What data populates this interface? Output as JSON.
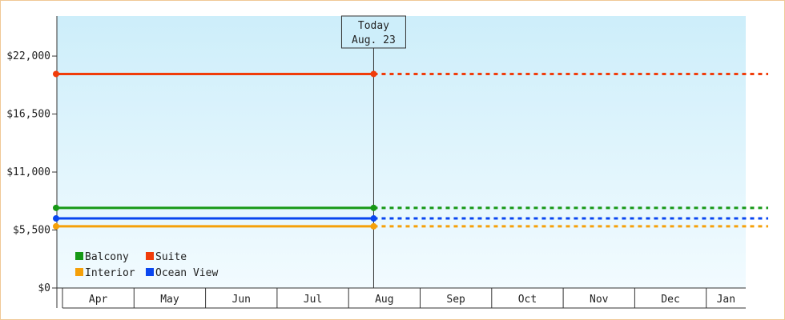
{
  "chart_data": {
    "type": "line",
    "categories": [
      "Apr",
      "May",
      "Jun",
      "Jul",
      "Aug",
      "Sep",
      "Oct",
      "Nov",
      "Dec",
      "Jan"
    ],
    "y_ticks": [
      "$0",
      "$5,500",
      "$11,000",
      "$16,500",
      "$22,000"
    ],
    "y_tick_values": [
      0,
      5500,
      11000,
      16500,
      22000
    ],
    "ylim": [
      0,
      25800
    ],
    "today": {
      "line1": "Today",
      "line2": "Aug. 23",
      "x_position_month": 4.35
    },
    "series": [
      {
        "name": "Balcony",
        "color": "#169816",
        "value": 7600
      },
      {
        "name": "Suite",
        "color": "#f03c0a",
        "value": 20300
      },
      {
        "name": "Interior",
        "color": "#f5a00a",
        "value": 5850
      },
      {
        "name": "Ocean View",
        "color": "#0a46f0",
        "value": 6600
      }
    ],
    "solid_until": "today",
    "dashed_after": "today",
    "background_gradient": [
      "#cdeefa",
      "#f2fbff"
    ],
    "legend": {
      "placement": "bottom-left",
      "order": [
        "Balcony",
        "Suite",
        "Interior",
        "Ocean View"
      ]
    },
    "grid": false
  }
}
